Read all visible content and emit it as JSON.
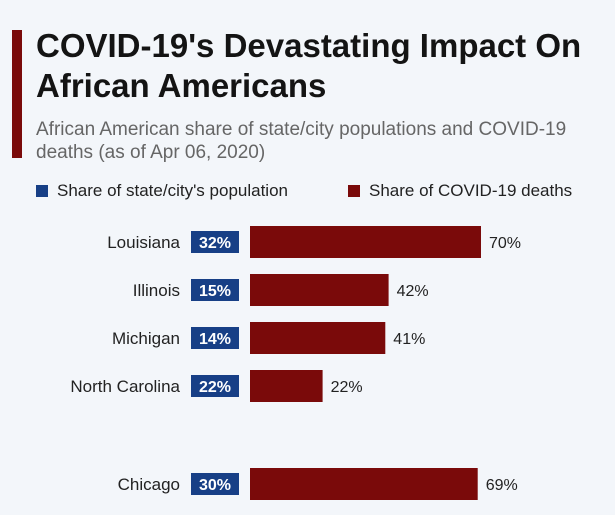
{
  "header": {
    "title": "COVID-19's Devastating Impact On African Americans",
    "subtitle": "African American share of state/city populations and COVID-19 deaths (as of Apr 06, 2020)"
  },
  "colors": {
    "population": "#173f86",
    "deaths": "#7a0a0a",
    "accent": "#7a0a0a"
  },
  "chart_data": {
    "type": "bar",
    "title": "COVID-19's Devastating Impact On African Americans",
    "subtitle": "African American share of state/city populations and COVID-19 deaths (as of Apr 06, 2020)",
    "xlabel": "",
    "ylabel": "",
    "xlim": [
      0,
      100
    ],
    "unit": "%",
    "legend": "top",
    "categories": [
      "Louisiana",
      "Illinois",
      "Michigan",
      "North Carolina",
      "Chicago"
    ],
    "series": [
      {
        "name": "Share of state/city's population",
        "values": [
          32,
          15,
          14,
          22,
          30
        ]
      },
      {
        "name": "Share of COVID-19 deaths",
        "values": [
          70,
          42,
          41,
          22,
          69
        ]
      }
    ],
    "value_labels": {
      "population": [
        "32%",
        "15%",
        "14%",
        "22%",
        "30%"
      ],
      "deaths": [
        "70%",
        "42%",
        "41%",
        "22%",
        "69%"
      ]
    }
  }
}
